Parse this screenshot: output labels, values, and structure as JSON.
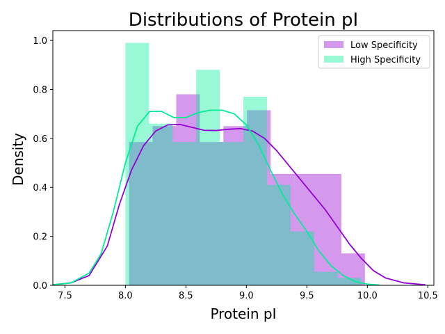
{
  "chart_data": {
    "type": "histogram",
    "title": "Distributions of Protein pI",
    "xlabel": "Protein pI",
    "ylabel": "Density",
    "xlim": [
      7.4,
      10.55
    ],
    "ylim": [
      0,
      1.04
    ],
    "x_ticks": [
      7.5,
      8.0,
      8.5,
      9.0,
      9.5,
      10.0,
      10.5
    ],
    "x_tick_labels": [
      "7.5",
      "8.0",
      "8.5",
      "9.0",
      "9.5",
      "10.0",
      "10.5"
    ],
    "y_ticks": [
      0.0,
      0.2,
      0.4,
      0.6,
      0.8,
      1.0
    ],
    "y_tick_labels": [
      "0.0",
      "0.2",
      "0.4",
      "0.6",
      "0.8",
      "1.0"
    ],
    "legend_position": "top-right",
    "legend": [
      "Low Specificity",
      "High Specificity"
    ],
    "series": [
      {
        "name": "Low Specificity",
        "color": "#9400D3",
        "bin_edges": [
          8.03,
          8.225,
          8.42,
          8.615,
          8.81,
          9.005,
          9.2,
          9.395,
          9.59,
          9.785,
          9.98
        ],
        "heights": [
          0.585,
          0.65,
          0.78,
          0.585,
          0.65,
          0.715,
          0.455,
          0.455,
          0.455,
          0.13
        ],
        "kde": [
          [
            7.4,
            0.002
          ],
          [
            7.55,
            0.01
          ],
          [
            7.7,
            0.04
          ],
          [
            7.85,
            0.16
          ],
          [
            7.95,
            0.33
          ],
          [
            8.05,
            0.47
          ],
          [
            8.15,
            0.57
          ],
          [
            8.25,
            0.63
          ],
          [
            8.35,
            0.655
          ],
          [
            8.45,
            0.657
          ],
          [
            8.55,
            0.645
          ],
          [
            8.65,
            0.633
          ],
          [
            8.75,
            0.632
          ],
          [
            8.85,
            0.637
          ],
          [
            8.95,
            0.64
          ],
          [
            9.05,
            0.63
          ],
          [
            9.15,
            0.6
          ],
          [
            9.25,
            0.55
          ],
          [
            9.35,
            0.49
          ],
          [
            9.45,
            0.43
          ],
          [
            9.55,
            0.37
          ],
          [
            9.65,
            0.31
          ],
          [
            9.75,
            0.24
          ],
          [
            9.85,
            0.17
          ],
          [
            9.95,
            0.11
          ],
          [
            10.05,
            0.06
          ],
          [
            10.15,
            0.03
          ],
          [
            10.3,
            0.01
          ],
          [
            10.48,
            0.002
          ]
        ]
      },
      {
        "name": "High Specificity",
        "color": "#00EE99",
        "bin_edges": [
          8.0,
          8.195,
          8.39,
          8.585,
          8.78,
          8.975,
          9.17,
          9.365,
          9.56,
          9.755,
          9.95
        ],
        "heights": [
          0.99,
          0.66,
          0.585,
          0.88,
          0.585,
          0.77,
          0.41,
          0.22,
          0.055,
          0.03
        ],
        "kde": [
          [
            7.4,
            0.002
          ],
          [
            7.55,
            0.01
          ],
          [
            7.7,
            0.05
          ],
          [
            7.8,
            0.13
          ],
          [
            7.9,
            0.3
          ],
          [
            8.0,
            0.5
          ],
          [
            8.1,
            0.65
          ],
          [
            8.2,
            0.71
          ],
          [
            8.3,
            0.71
          ],
          [
            8.4,
            0.685
          ],
          [
            8.5,
            0.685
          ],
          [
            8.6,
            0.705
          ],
          [
            8.7,
            0.715
          ],
          [
            8.8,
            0.715
          ],
          [
            8.9,
            0.7
          ],
          [
            9.0,
            0.655
          ],
          [
            9.1,
            0.575
          ],
          [
            9.2,
            0.47
          ],
          [
            9.3,
            0.37
          ],
          [
            9.4,
            0.29
          ],
          [
            9.5,
            0.22
          ],
          [
            9.6,
            0.14
          ],
          [
            9.7,
            0.08
          ],
          [
            9.8,
            0.04
          ],
          [
            9.9,
            0.015
          ],
          [
            10.0,
            0.005
          ],
          [
            10.1,
            0.001
          ]
        ]
      }
    ]
  }
}
